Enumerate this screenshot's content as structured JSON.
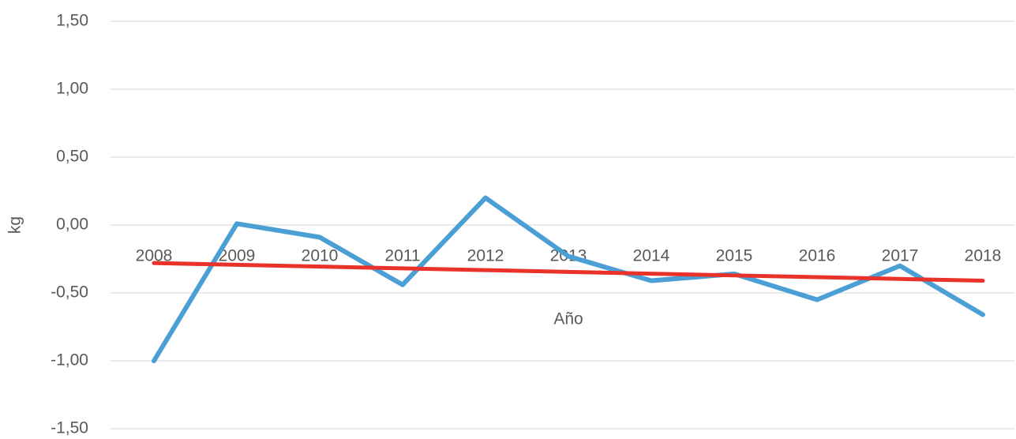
{
  "chart_data": {
    "type": "line",
    "y_label": "kg",
    "x_label": "Año",
    "categories": [
      "2008",
      "2009",
      "2010",
      "2011",
      "2012",
      "2013",
      "2014",
      "2015",
      "2016",
      "2017",
      "2018"
    ],
    "series": [
      {
        "color": "#4a9fd5",
        "values": [
          -1.0,
          0.01,
          -0.09,
          -0.44,
          0.2,
          -0.23,
          -0.41,
          -0.36,
          -0.55,
          -0.3,
          -0.66
        ]
      },
      {
        "color": "#e8322a",
        "values": [
          -0.28,
          -0.293,
          -0.306,
          -0.319,
          -0.332,
          -0.345,
          -0.358,
          -0.371,
          -0.384,
          -0.397,
          -0.41
        ]
      }
    ],
    "ylim": [
      -1.5,
      1.5
    ],
    "yticks": [
      {
        "value": -1.5,
        "label": "-1,50"
      },
      {
        "value": -1.0,
        "label": "-1,00"
      },
      {
        "value": -0.5,
        "label": "-0,50"
      },
      {
        "value": 0,
        "label": "0,00"
      },
      {
        "value": 0.5,
        "label": "0,50"
      },
      {
        "value": 1.0,
        "label": "1,00"
      },
      {
        "value": 1.5,
        "label": "1,50"
      }
    ],
    "grid": true
  }
}
